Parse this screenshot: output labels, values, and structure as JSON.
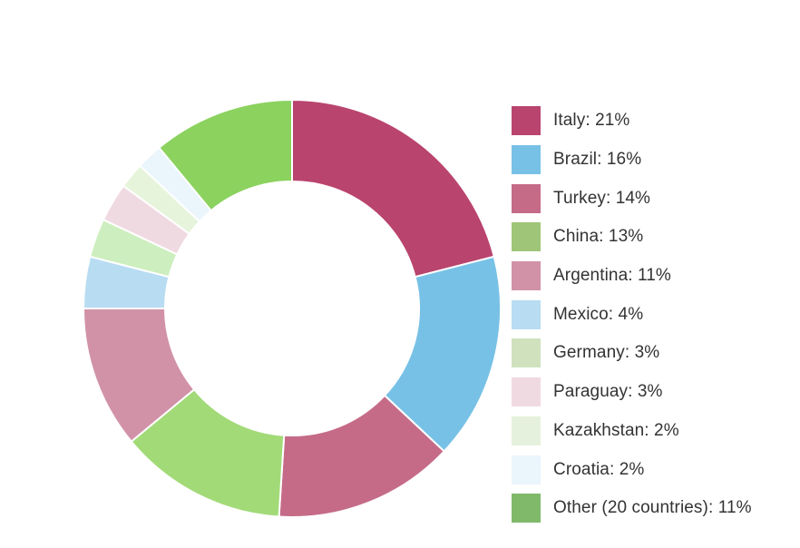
{
  "chart_data": {
    "type": "pie",
    "variant": "donut",
    "categories": [
      "Italy",
      "Brazil",
      "Turkey",
      "China",
      "Argentina",
      "Mexico",
      "Germany",
      "Paraguay",
      "Kazakhstan",
      "Croatia",
      "Other (20 countries)"
    ],
    "values": [
      21,
      16,
      14,
      13,
      11,
      4,
      3,
      3,
      2,
      2,
      11
    ],
    "legend_labels": [
      "Italy: 21%",
      "Brazil: 16%",
      "Turkey: 14%",
      "China: 13%",
      "Argentina: 11%",
      "Mexico: 4%",
      "Germany: 3%",
      "Paraguay: 3%",
      "Kazakhstan: 2%",
      "Croatia: 2%",
      "Other (20 countries): 11%"
    ],
    "slice_colors": [
      "#b9446e",
      "#78c1e6",
      "#c56b88",
      "#a2da78",
      "#d192a8",
      "#b8dcf2",
      "#cdeebe",
      "#f0dae2",
      "#e7f4dc",
      "#eaf5fc",
      "#8bd25f"
    ],
    "legend_colors": [
      "#b9446e",
      "#78c1e6",
      "#c56b88",
      "#9fc678",
      "#d192a8",
      "#b8dcf2",
      "#cfe2bd",
      "#f0dae2",
      "#e5f1dc",
      "#eaf5fc",
      "#80b96a"
    ],
    "legend_position": "right"
  }
}
